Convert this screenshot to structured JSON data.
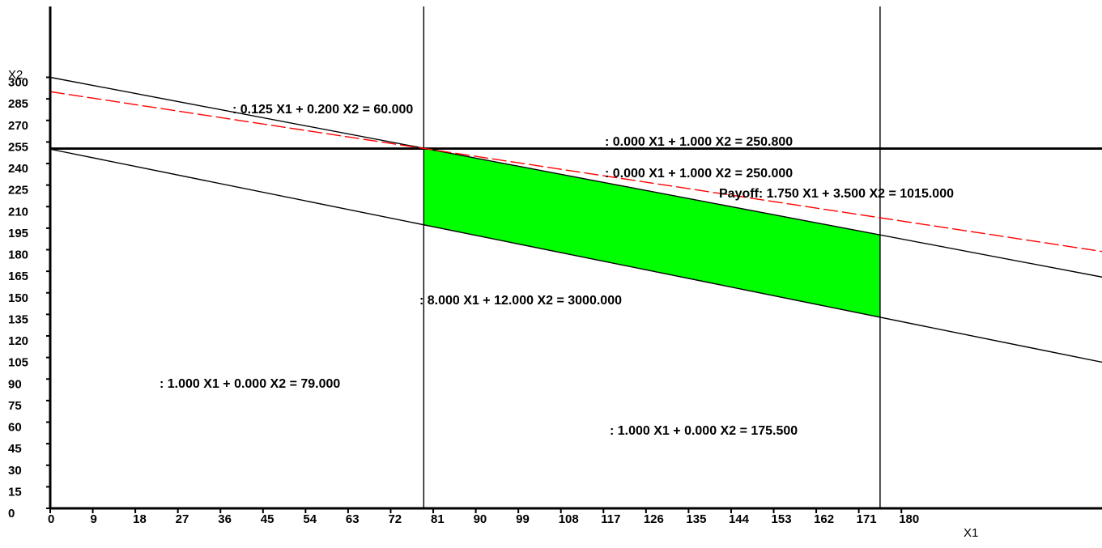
{
  "chart_data": {
    "type": "line",
    "xlabel": "X1",
    "ylabel": "X2",
    "xlim": [
      0,
      247
    ],
    "ylim": [
      0,
      320
    ],
    "x_ticks": [
      0,
      9,
      18,
      27,
      36,
      45,
      54,
      63,
      72,
      81,
      90,
      99,
      108,
      117,
      126,
      135,
      144,
      153,
      162,
      171,
      180
    ],
    "y_ticks": [
      0,
      15,
      30,
      45,
      60,
      75,
      90,
      105,
      120,
      135,
      150,
      165,
      180,
      195,
      210,
      225,
      240,
      255,
      270,
      285,
      300
    ],
    "constraints": [
      {
        "label": ": 0.125 X1 + 0.200 X2 = 60.000",
        "a": 0.125,
        "b": 0.2,
        "c": 60.0,
        "color": "#000000"
      },
      {
        "label": ": 0.000 X1 + 1.000 X2 = 250.800",
        "a": 0.0,
        "b": 1.0,
        "c": 250.8,
        "color": "#000000"
      },
      {
        "label": ": 0.000 X1 + 1.000 X2 = 250.000",
        "a": 0.0,
        "b": 1.0,
        "c": 250.0,
        "color": "#000000"
      },
      {
        "label": ": 8.000 X1 + 12.000 X2 = 3000.000",
        "a": 8.0,
        "b": 12.0,
        "c": 3000.0,
        "color": "#000000"
      },
      {
        "label": ": 1.000 X1 + 0.000 X2 = 79.000",
        "a": 1.0,
        "b": 0.0,
        "c": 79.0,
        "color": "#000000"
      },
      {
        "label": ": 1.000 X1 + 0.000 X2 = 175.500",
        "a": 1.0,
        "b": 0.0,
        "c": 175.5,
        "color": "#000000"
      }
    ],
    "payoff": {
      "label": "Payoff: 1.750 X1 + 3.500 X2 = 1015.000",
      "a": 1.75,
      "b": 3.5,
      "c": 1015.0,
      "color": "#ff0000",
      "dashed": true
    },
    "feasible_region": {
      "vertices": [
        [
          79,
          250.6
        ],
        [
          175.5,
          190.3
        ],
        [
          175.5,
          133.0
        ],
        [
          79,
          197.3
        ]
      ],
      "color": "#00ff00"
    },
    "grid": false
  }
}
